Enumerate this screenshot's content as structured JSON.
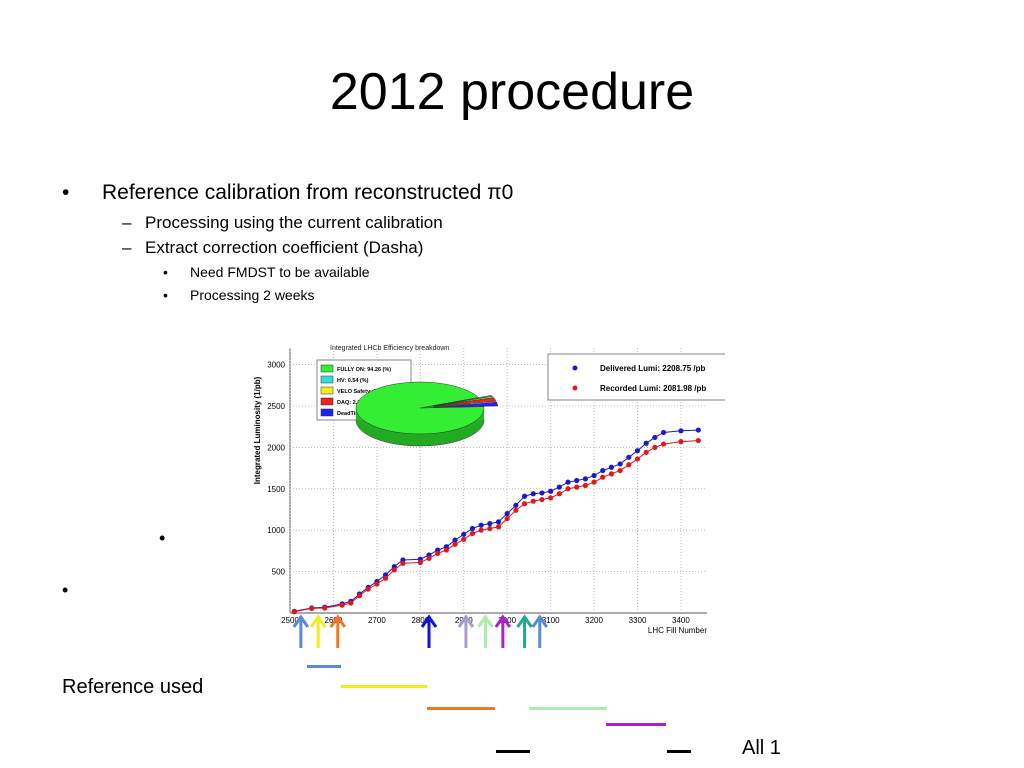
{
  "slide": {
    "title": "2012 procedure",
    "bullets": [
      {
        "text": "Reference calibration from reconstructed π0",
        "level": 1
      },
      {
        "text": "Processing using the current calibration",
        "level": 2
      },
      {
        "text": "Extract correction coefficient (Dasha)",
        "level": 2
      },
      {
        "text": "Need FMDST to be available",
        "level": 3
      },
      {
        "text": "Processing 2 weeks",
        "level": 3
      }
    ],
    "reference_label": "Reference used",
    "all_label": "All 1"
  },
  "chart_data": {
    "type": "line",
    "title": "Integrated LHCb Efficiency breakdown",
    "xlabel": "LHC Fill Number",
    "ylabel": "Integrated Luminosity (1/pb)",
    "xlim": [
      2500,
      3460
    ],
    "ylim": [
      0,
      3200
    ],
    "x_ticks": [
      "2500",
      "2600",
      "2700",
      "2800",
      "2900",
      "3000",
      "3100",
      "3200",
      "3300",
      "3400"
    ],
    "y_ticks": [
      "500",
      "1000",
      "1500",
      "2000",
      "2500",
      "3000"
    ],
    "grid": true,
    "series": [
      {
        "name": "Delivered Lumi: 2208.75 /pb",
        "color": "#1a1acc",
        "x": [
          2510,
          2550,
          2580,
          2620,
          2640,
          2660,
          2680,
          2700,
          2720,
          2740,
          2760,
          2800,
          2820,
          2840,
          2860,
          2880,
          2900,
          2920,
          2940,
          2960,
          2980,
          3000,
          3020,
          3040,
          3060,
          3080,
          3100,
          3120,
          3140,
          3160,
          3180,
          3200,
          3220,
          3240,
          3260,
          3280,
          3300,
          3320,
          3340,
          3360,
          3400,
          3440
        ],
        "y": [
          20,
          60,
          70,
          110,
          140,
          230,
          310,
          380,
          460,
          560,
          640,
          650,
          700,
          760,
          800,
          880,
          950,
          1020,
          1060,
          1080,
          1100,
          1200,
          1300,
          1410,
          1440,
          1450,
          1470,
          1520,
          1580,
          1600,
          1620,
          1660,
          1720,
          1760,
          1800,
          1880,
          1960,
          2050,
          2120,
          2180,
          2200,
          2209
        ]
      },
      {
        "name": "Recorded Lumi: 2081.98 /pb",
        "color": "#e01818",
        "x": [
          2510,
          2550,
          2580,
          2620,
          2640,
          2660,
          2680,
          2700,
          2720,
          2740,
          2760,
          2800,
          2820,
          2840,
          2860,
          2880,
          2900,
          2920,
          2940,
          2960,
          2980,
          3000,
          3020,
          3040,
          3060,
          3080,
          3100,
          3120,
          3140,
          3160,
          3180,
          3200,
          3220,
          3240,
          3260,
          3280,
          3300,
          3320,
          3340,
          3360,
          3400,
          3440
        ],
        "y": [
          15,
          55,
          60,
          95,
          120,
          210,
          290,
          350,
          420,
          520,
          600,
          610,
          660,
          720,
          760,
          830,
          890,
          960,
          1000,
          1020,
          1040,
          1140,
          1240,
          1320,
          1350,
          1370,
          1390,
          1440,
          1500,
          1520,
          1540,
          1580,
          1640,
          1680,
          1720,
          1790,
          1860,
          1940,
          2000,
          2040,
          2070,
          2082
        ]
      }
    ],
    "legend": {
      "placement": "top-right",
      "entries": [
        "Delivered Lumi: 2208.75 /pb",
        "Recorded Lumi: 2081.98 /pb"
      ]
    },
    "pie": {
      "slices": [
        {
          "label": "FULLY ON: 94.26 (%)",
          "value": 94.26,
          "color": "#33ee33"
        },
        {
          "label": "HV: 0.54 (%)",
          "value": 0.54,
          "color": "#33dddd"
        },
        {
          "label": "VELO Safety: 0.76 (%)",
          "value": 0.76,
          "color": "#eeee22"
        },
        {
          "label": "DAQ: 2.15 (%)",
          "value": 2.15,
          "color": "#ee2222"
        },
        {
          "label": "DeadTime: 2.39 (%)",
          "value": 2.39,
          "color": "#2222ee"
        }
      ]
    },
    "arrows": [
      {
        "fill": 2525,
        "color": "#5b8ad4"
      },
      {
        "fill": 2565,
        "color": "#eeee22"
      },
      {
        "fill": 2610,
        "color": "#ee7722"
      },
      {
        "fill": 2820,
        "color": "#1111dd"
      },
      {
        "fill": 2905,
        "color": "#a89ccc"
      },
      {
        "fill": 2950,
        "color": "#aaeeaa"
      },
      {
        "fill": 2990,
        "color": "#aa22cc"
      },
      {
        "fill": 3040,
        "color": "#22aa88"
      },
      {
        "fill": 3075,
        "color": "#5b8ad4"
      }
    ]
  },
  "reference_bars": [
    {
      "color": "#5b8ad4"
    },
    {
      "color": "#eeee22"
    },
    {
      "color": "#ee7722"
    },
    {
      "color": "#aaeeaa"
    },
    {
      "color": "#aa22cc"
    },
    {
      "color": "#000000"
    },
    {
      "color": "#000000"
    }
  ]
}
